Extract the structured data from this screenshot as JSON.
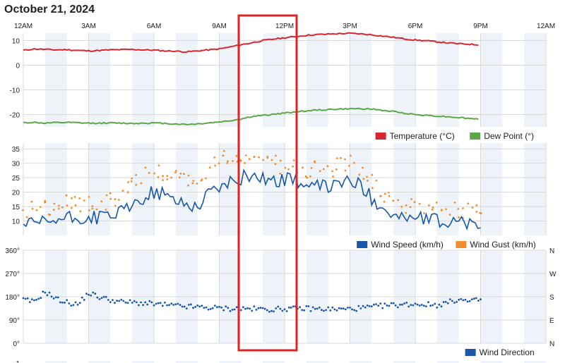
{
  "page": {
    "title": "October 21, 2024",
    "colors": {
      "temperature": "#d9262e",
      "dew_point": "#5aa846",
      "wind_speed": "#1756a9",
      "wind_gust": "#f28e2b",
      "wind_direction": "#1756a9",
      "band": "#eef3f9",
      "grid": "#d8d8d8",
      "highlight_box": "#e02424"
    }
  },
  "chart_data": [
    {
      "type": "line",
      "x_ticks": [
        "12AM",
        "3AM",
        "6AM",
        "9AM",
        "12PM",
        "3PM",
        "6PM",
        "9PM",
        "12AM"
      ],
      "xlim_hours": [
        0,
        24
      ],
      "yticks": [
        "10",
        "0",
        "-10",
        "-20"
      ],
      "ylim": [
        -25,
        13
      ],
      "legend_position": "bottom-right",
      "series": [
        {
          "name": "Temperature (°C)",
          "hour": [
            0,
            0.5,
            1,
            1.5,
            2,
            2.5,
            3,
            3.5,
            4,
            4.5,
            5,
            5.5,
            6,
            6.5,
            7,
            7.5,
            8,
            8.5,
            9,
            9.5,
            10,
            10.5,
            11,
            11.5,
            12,
            12.5,
            13,
            13.5,
            14,
            14.5,
            15,
            15.5,
            16,
            16.5,
            17,
            17.5,
            18,
            18.5,
            19,
            19.5,
            20,
            20.5,
            21
          ],
          "values": [
            6,
            6.6,
            6.4,
            6.2,
            6.3,
            6,
            5.8,
            6,
            6.2,
            6.3,
            6.4,
            6.2,
            6.1,
            5.8,
            5.7,
            5.4,
            5.8,
            6.2,
            6.6,
            7.4,
            8.3,
            9.1,
            10,
            10.6,
            11.1,
            11.6,
            12.1,
            12.4,
            12.6,
            12.8,
            12.9,
            12.7,
            12.3,
            11.8,
            11.3,
            10.7,
            10.2,
            9.9,
            9.5,
            9,
            8.7,
            8.5,
            8.2
          ]
        },
        {
          "name": "Dew Point (°)",
          "hour": [
            0,
            0.5,
            1,
            1.5,
            2,
            2.5,
            3,
            3.5,
            4,
            4.5,
            5,
            5.5,
            6,
            6.5,
            7,
            7.5,
            8,
            8.5,
            9,
            9.5,
            10,
            10.5,
            11,
            11.5,
            12,
            12.5,
            13,
            13.5,
            14,
            14.5,
            15,
            15.5,
            16,
            16.5,
            17,
            17.5,
            18,
            18.5,
            19,
            19.5,
            20,
            20.5,
            21
          ],
          "values": [
            -23.3,
            -23.2,
            -23.5,
            -23.3,
            -23.2,
            -23.4,
            -23.5,
            -23.5,
            -23.4,
            -23.5,
            -23.6,
            -23.5,
            -23.4,
            -23.6,
            -23.8,
            -24,
            -23.8,
            -23.4,
            -23,
            -22.5,
            -21.8,
            -20.8,
            -20.4,
            -19.9,
            -19.4,
            -18.9,
            -18.5,
            -18.2,
            -18,
            -17.8,
            -17.7,
            -17.6,
            -17.8,
            -18.3,
            -18.8,
            -19.4,
            -20,
            -20.3,
            -20.6,
            -20.9,
            -21.2,
            -21.6,
            -21.8
          ]
        }
      ]
    },
    {
      "type": "line",
      "x_ticks": [
        "12AM",
        "3AM",
        "6AM",
        "9AM",
        "12PM",
        "3PM",
        "6PM",
        "9PM",
        "12AM"
      ],
      "xlim_hours": [
        0,
        24
      ],
      "yticks": [
        "35",
        "30",
        "25",
        "20",
        "15",
        "10"
      ],
      "ylim": [
        5,
        37
      ],
      "legend_position": "bottom-right",
      "series": [
        {
          "name": "Wind Speed (km/h)",
          "hour": [
            0,
            0.5,
            1,
            1.5,
            2,
            2.5,
            3,
            3.5,
            4,
            4.5,
            5,
            5.5,
            6,
            6.5,
            7,
            7.5,
            8,
            8.5,
            9,
            9.5,
            10,
            10.5,
            11,
            11.5,
            12,
            12.5,
            13,
            13.5,
            14,
            14.5,
            15,
            15.5,
            16,
            16.5,
            17,
            17.5,
            18,
            18.5,
            19,
            19.5,
            20,
            20.5,
            21
          ],
          "values": [
            9,
            8.5,
            9.5,
            10,
            11,
            10.5,
            11,
            11.5,
            12,
            13,
            15,
            18,
            20,
            19,
            17,
            16,
            15,
            20,
            22,
            23,
            25,
            26,
            25,
            24,
            24,
            25,
            21,
            22,
            22,
            23,
            24,
            22,
            18,
            15,
            12,
            11,
            11,
            10.5,
            10,
            9.5,
            10,
            9,
            8.5
          ],
          "variation": 2.5,
          "step_hours": 0.125,
          "style": "line"
        },
        {
          "name": "Wind Gust (km/h)",
          "hour": [
            0,
            0.5,
            1,
            1.5,
            2,
            2.5,
            3,
            3.5,
            4,
            4.5,
            5,
            5.5,
            6,
            6.5,
            7,
            7.5,
            8,
            8.5,
            9,
            9.5,
            10,
            10.5,
            11,
            11.5,
            12,
            12.5,
            13,
            13.5,
            14,
            14.5,
            15,
            15.5,
            16,
            16.5,
            17,
            17.5,
            18,
            18.5,
            19,
            19.5,
            20,
            20.5,
            21
          ],
          "values": [
            13,
            14,
            15,
            15,
            16,
            16,
            16,
            16,
            17,
            19,
            22,
            26,
            28,
            27,
            25,
            23,
            22,
            27,
            31,
            33,
            33,
            33,
            31,
            30,
            29,
            30,
            28,
            28,
            28,
            29,
            30,
            28,
            23,
            19,
            16,
            15,
            15,
            14,
            14,
            14,
            14,
            13,
            13
          ],
          "variation": 3,
          "step_hours": 0.2,
          "style": "dots"
        }
      ]
    },
    {
      "type": "scatter",
      "x_ticks": [
        "12AM",
        "3AM",
        "6AM",
        "9AM",
        "12PM",
        "3PM",
        "6PM",
        "9PM",
        "12AM"
      ],
      "xlim_hours": [
        0,
        24
      ],
      "yticks": [
        "360°",
        "270°",
        "180°",
        "90°",
        "0°"
      ],
      "right_ticks": [
        "N",
        "W",
        "S",
        "E",
        "N"
      ],
      "ylim": [
        0,
        360
      ],
      "legend_position": "bottom-right",
      "series": [
        {
          "name": "Wind Direction",
          "hour": [
            0,
            0.5,
            1,
            1.5,
            2,
            2.5,
            3,
            3.5,
            4,
            4.5,
            5,
            5.5,
            6,
            6.5,
            7,
            7.5,
            8,
            8.5,
            9,
            9.5,
            10,
            10.5,
            11,
            11.5,
            12,
            12.5,
            13,
            13.5,
            14,
            14.5,
            15,
            15.5,
            16,
            16.5,
            17,
            17.5,
            18,
            18.5,
            19,
            19.5,
            20,
            20.5,
            21
          ],
          "values": [
            168,
            160,
            200,
            172,
            158,
            150,
            195,
            178,
            168,
            160,
            158,
            155,
            152,
            148,
            145,
            142,
            140,
            138,
            136,
            134,
            134,
            133,
            132,
            131,
            134,
            133,
            135,
            133,
            132,
            131,
            133,
            136,
            140,
            145,
            148,
            150,
            152,
            150,
            148,
            158,
            170,
            160,
            170
          ],
          "variation": 10,
          "step_hours": 0.1,
          "style": "dots"
        }
      ]
    },
    {
      "type": "line",
      "yticks": [
        "1"
      ],
      "note": "partially visible chart at bottom"
    }
  ]
}
